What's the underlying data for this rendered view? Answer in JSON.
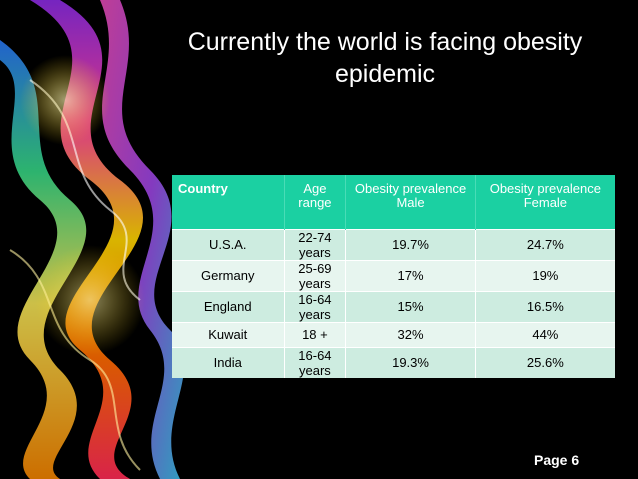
{
  "slide": {
    "title_line1": "Currently the world is facing obesity",
    "title_line2": "epidemic",
    "page_label": "Page 6"
  },
  "table": {
    "headers": [
      "Country",
      "Age range",
      "Obesity prevalence Male",
      "Obesity prevalence Female"
    ],
    "rows": [
      [
        "U.S.A.",
        "22-74 years",
        "19.7%",
        "24.7%"
      ],
      [
        "Germany",
        "25-69 years",
        "17%",
        "19%"
      ],
      [
        "England",
        "16-64 years",
        "15%",
        "16.5%"
      ],
      [
        "Kuwait",
        "18 +",
        "32%",
        "44%"
      ],
      [
        "India",
        "16-64 years",
        "19.3%",
        "25.6%"
      ]
    ]
  },
  "colors": {
    "header_bg": "#1bd0a2",
    "row_odd": "#cdece0",
    "row_even": "#e7f5ef",
    "background": "#000000"
  }
}
